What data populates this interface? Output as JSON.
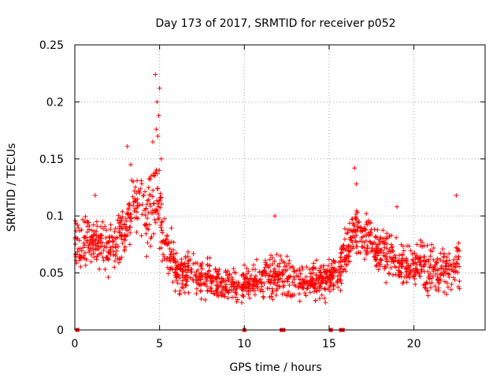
{
  "chart_data": {
    "type": "scatter",
    "title": "Day 173 of 2017, SRMTID for receiver p052",
    "xlabel": "GPS time / hours",
    "ylabel": "SRMTID / TECUs",
    "xlim": [
      0,
      24.2
    ],
    "ylim": [
      0,
      0.25
    ],
    "x_ticks": [
      0,
      5,
      10,
      15,
      20
    ],
    "x_tick_labels": [
      "0",
      "5",
      "10",
      "15",
      "20"
    ],
    "y_ticks": [
      0,
      0.05,
      0.1,
      0.15,
      0.2,
      0.25
    ],
    "y_tick_labels": [
      "0",
      "0.05",
      "0.1",
      "0.15",
      "0.2",
      "0.25"
    ],
    "grid": true,
    "marker": "plus",
    "series_color": "#ff0000",
    "series": [
      {
        "name": "SRMTID",
        "profile": [
          {
            "t": 0.0,
            "mean": 0.07,
            "spread": 0.03
          },
          {
            "t": 1.0,
            "mean": 0.078,
            "spread": 0.03
          },
          {
            "t": 2.0,
            "mean": 0.072,
            "spread": 0.03
          },
          {
            "t": 3.0,
            "mean": 0.088,
            "spread": 0.035
          },
          {
            "t": 3.5,
            "mean": 0.11,
            "spread": 0.04
          },
          {
            "t": 4.3,
            "mean": 0.1,
            "spread": 0.04
          },
          {
            "t": 4.8,
            "mean": 0.125,
            "spread": 0.06
          },
          {
            "t": 5.3,
            "mean": 0.08,
            "spread": 0.04
          },
          {
            "t": 6.0,
            "mean": 0.05,
            "spread": 0.025
          },
          {
            "t": 8.0,
            "mean": 0.045,
            "spread": 0.022
          },
          {
            "t": 9.5,
            "mean": 0.038,
            "spread": 0.02
          },
          {
            "t": 11.0,
            "mean": 0.045,
            "spread": 0.022
          },
          {
            "t": 12.0,
            "mean": 0.048,
            "spread": 0.028
          },
          {
            "t": 13.5,
            "mean": 0.042,
            "spread": 0.022
          },
          {
            "t": 15.0,
            "mean": 0.045,
            "spread": 0.022
          },
          {
            "t": 15.8,
            "mean": 0.058,
            "spread": 0.03
          },
          {
            "t": 16.5,
            "mean": 0.085,
            "spread": 0.032
          },
          {
            "t": 17.5,
            "mean": 0.078,
            "spread": 0.03
          },
          {
            "t": 18.5,
            "mean": 0.065,
            "spread": 0.03
          },
          {
            "t": 19.5,
            "mean": 0.055,
            "spread": 0.03
          },
          {
            "t": 20.5,
            "mean": 0.058,
            "spread": 0.03
          },
          {
            "t": 21.5,
            "mean": 0.05,
            "spread": 0.03
          },
          {
            "t": 22.7,
            "mean": 0.058,
            "spread": 0.03
          }
        ],
        "spikes": [
          {
            "x": 4.75,
            "y": 0.224
          },
          {
            "x": 5.0,
            "y": 0.212
          },
          {
            "x": 4.85,
            "y": 0.2
          },
          {
            "x": 4.95,
            "y": 0.188
          },
          {
            "x": 4.8,
            "y": 0.176
          },
          {
            "x": 4.9,
            "y": 0.17
          },
          {
            "x": 3.1,
            "y": 0.161
          },
          {
            "x": 4.6,
            "y": 0.165
          },
          {
            "x": 3.3,
            "y": 0.145
          },
          {
            "x": 16.5,
            "y": 0.142
          },
          {
            "x": 5.1,
            "y": 0.15
          },
          {
            "x": 16.6,
            "y": 0.128
          },
          {
            "x": 22.5,
            "y": 0.118
          },
          {
            "x": 1.2,
            "y": 0.118
          },
          {
            "x": 11.8,
            "y": 0.1
          },
          {
            "x": 19.0,
            "y": 0.108
          }
        ],
        "zero_points": [
          0.15,
          10.0,
          12.2,
          12.3,
          15.1,
          15.7,
          15.8
        ]
      }
    ]
  }
}
